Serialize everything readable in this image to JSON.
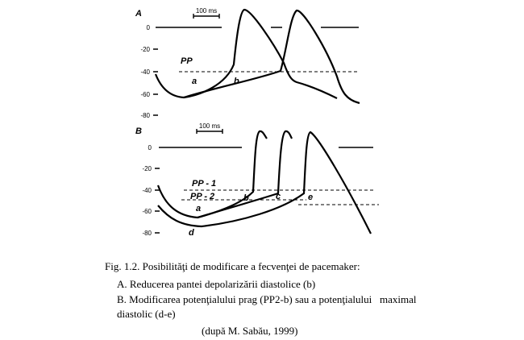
{
  "panel_a": {
    "label": "A",
    "scale_bar": "100 ms",
    "y_labels": [
      "0",
      "-20",
      "-40",
      "-60",
      "-80"
    ],
    "threshold": "PP",
    "curves": [
      "a",
      "b"
    ]
  },
  "panel_b": {
    "label": "B",
    "scale_bar": "100 ms",
    "y_labels": [
      "0",
      "-20",
      "-40",
      "-60",
      "-80"
    ],
    "thresholds": [
      "PP - 1",
      "PP - 2"
    ],
    "curves": [
      "a",
      "b",
      "c",
      "d",
      "e"
    ]
  },
  "caption": {
    "title": "Fig. 1.2. Posibilităţi de modificare a fecvenţei de pacemaker:",
    "lines": [
      "A. Reducerea pantei depolarizării diastolice (b)",
      "B. Modificarea potenţialului prag (PP2-b) sau a potenţialului   maximal",
      "diastolic (d-e)"
    ],
    "source": "(după M. Sabău, 1999)"
  }
}
